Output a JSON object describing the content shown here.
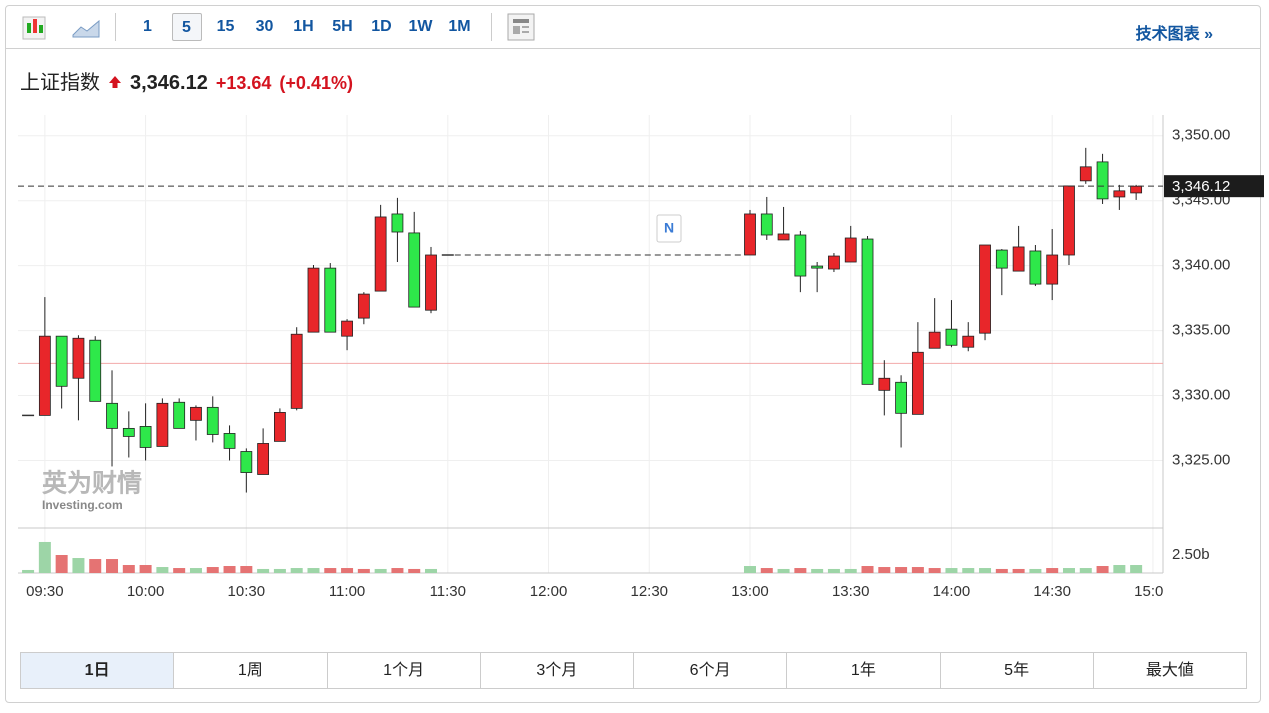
{
  "toolbar": {
    "intervals": [
      "1",
      "5",
      "15",
      "30",
      "1H",
      "5H",
      "1D",
      "1W",
      "1M"
    ],
    "active_interval_index": 1,
    "tech_chart": "技术图表 »"
  },
  "header": {
    "name": "上证指数",
    "change": "+13.64",
    "change_pct": "(+0.41%)"
  },
  "ranges": {
    "items": [
      "1日",
      "1周",
      "1个月",
      "3个月",
      "6个月",
      "1年",
      "5年",
      "最大値"
    ],
    "active_index": 0
  },
  "chart_data": {
    "type": "candlestick",
    "x": [
      "09:25",
      "09:30",
      "09:35",
      "09:40",
      "09:45",
      "09:50",
      "09:55",
      "10:00",
      "10:05",
      "10:10",
      "10:15",
      "10:20",
      "10:25",
      "10:30",
      "10:35",
      "10:40",
      "10:45",
      "10:50",
      "10:55",
      "11:00",
      "11:05",
      "11:10",
      "11:15",
      "11:20",
      "11:25",
      "11:30",
      "13:00",
      "13:05",
      "13:10",
      "13:15",
      "13:20",
      "13:25",
      "13:30",
      "13:35",
      "13:40",
      "13:45",
      "13:50",
      "13:55",
      "14:00",
      "14:05",
      "14:10",
      "14:15",
      "14:20",
      "14:25",
      "14:30",
      "14:35",
      "14:40",
      "14:45",
      "14:50",
      "14:55"
    ],
    "open": [
      3328.47,
      3328.47,
      3334.57,
      3331.33,
      3334.26,
      3329.4,
      3327.47,
      3327.62,
      3326.08,
      3329.48,
      3328.09,
      3329.09,
      3327.08,
      3325.69,
      3323.92,
      3326.47,
      3329.01,
      3334.88,
      3339.81,
      3334.57,
      3335.96,
      3338.04,
      3343.98,
      3342.52,
      3336.57,
      3340.82,
      3340.82,
      3343.98,
      3341.98,
      3342.36,
      3339.97,
      3339.74,
      3340.28,
      3342.05,
      3330.4,
      3331.02,
      3328.55,
      3333.64,
      3335.11,
      3333.72,
      3334.8,
      3341.2,
      3339.58,
      3341.13,
      3338.58,
      3340.82,
      3346.53,
      3347.99,
      3345.29,
      3345.6
    ],
    "high": [
      3328.47,
      3337.58,
      3334.57,
      3334.64,
      3334.57,
      3331.94,
      3328.78,
      3329.4,
      3329.78,
      3329.78,
      3329.24,
      3329.94,
      3327.7,
      3325.93,
      3327.47,
      3329.01,
      3335.26,
      3340.05,
      3340.2,
      3335.88,
      3337.96,
      3344.68,
      3345.22,
      3344.14,
      3341.44,
      3340.82,
      3344.29,
      3345.29,
      3344.52,
      3342.67,
      3340.28,
      3340.97,
      3343.06,
      3342.28,
      3332.72,
      3331.56,
      3335.65,
      3337.5,
      3337.35,
      3335.65,
      3341.59,
      3341.28,
      3343.06,
      3341.59,
      3342.82,
      3346.14,
      3349.07,
      3348.61,
      3346.22,
      3346.22
    ],
    "low": [
      3328.47,
      3328.47,
      3329.0,
      3328.09,
      3329.55,
      3324.54,
      3325.23,
      3325.0,
      3326.08,
      3327.47,
      3326.54,
      3326.39,
      3325.0,
      3322.53,
      3323.92,
      3326.47,
      3328.86,
      3334.88,
      3334.88,
      3333.49,
      3335.49,
      3338.04,
      3340.28,
      3336.81,
      3336.34,
      3340.82,
      3340.82,
      3341.98,
      3341.98,
      3337.96,
      3337.96,
      3339.51,
      3340.28,
      3330.86,
      3328.47,
      3326.0,
      3328.55,
      3333.64,
      3333.72,
      3333.41,
      3334.26,
      3337.73,
      3339.58,
      3338.43,
      3337.35,
      3340.05,
      3346.3,
      3344.75,
      3344.29,
      3345.06
    ],
    "close": [
      3328.47,
      3334.57,
      3330.71,
      3334.41,
      3329.55,
      3327.47,
      3326.85,
      3326.0,
      3329.4,
      3327.47,
      3329.09,
      3327.0,
      3325.93,
      3324.07,
      3326.31,
      3328.7,
      3334.72,
      3339.81,
      3334.88,
      3335.73,
      3337.81,
      3343.75,
      3342.59,
      3336.81,
      3340.82,
      3340.82,
      3343.98,
      3342.36,
      3342.44,
      3339.2,
      3339.81,
      3340.74,
      3342.13,
      3330.86,
      3331.33,
      3328.63,
      3333.33,
      3334.88,
      3333.87,
      3334.57,
      3341.59,
      3339.81,
      3341.44,
      3338.58,
      3340.82,
      3346.14,
      3347.61,
      3345.14,
      3345.76,
      3346.12
    ],
    "up_color": "#e8262a",
    "down_color": "#2ee84a",
    "flat_color": "#333333",
    "xlim": [
      "09:22",
      "15:03"
    ],
    "xticks": [
      "09:30",
      "10:00",
      "10:30",
      "11:00",
      "11:30",
      "12:00",
      "12:30",
      "13:00",
      "13:30",
      "14:00",
      "14:30",
      "15:00"
    ],
    "ylim": [
      3319.8,
      3351.6
    ],
    "yticks": [
      {
        "value": 3325,
        "label": "3,325.00"
      },
      {
        "value": 3330,
        "label": "3,330.00"
      },
      {
        "value": 3335,
        "label": "3,335.00"
      },
      {
        "value": 3340,
        "label": "3,340.00"
      },
      {
        "value": 3345,
        "label": "3,345.00"
      },
      {
        "value": 3350,
        "label": "3,350.00"
      }
    ],
    "grid": true,
    "last_price": {
      "value": 3346.12,
      "label": "3,346.12"
    },
    "prev_close": 3332.48,
    "event_marker": "N",
    "watermark": {
      "brand": "英为财情",
      "site": "Investing.com"
    },
    "volume": {
      "values": [
        0.42,
        4.31,
        2.5,
        2.08,
        1.94,
        1.94,
        1.11,
        1.11,
        0.83,
        0.69,
        0.69,
        0.83,
        0.97,
        0.97,
        0.56,
        0.56,
        0.69,
        0.69,
        0.69,
        0.69,
        0.56,
        0.56,
        0.69,
        0.56,
        0.56,
        null,
        0.97,
        0.69,
        0.56,
        0.69,
        0.56,
        0.56,
        0.56,
        0.97,
        0.83,
        0.83,
        0.83,
        0.69,
        0.69,
        0.69,
        0.69,
        0.56,
        0.56,
        0.56,
        0.69,
        0.69,
        0.69,
        0.97,
        1.11,
        1.11
      ],
      "colors": [
        "#9dd5a7",
        "#9dd5a7",
        "#e57373",
        "#9dd5a7",
        "#e57373",
        "#e57373",
        "#e57373",
        "#e57373",
        "#9dd5a7",
        "#e57373",
        "#9dd5a7",
        "#e57373",
        "#e57373",
        "#e57373",
        "#9dd5a7",
        "#9dd5a7",
        "#9dd5a7",
        "#9dd5a7",
        "#e57373",
        "#e57373",
        "#e57373",
        "#9dd5a7",
        "#e57373",
        "#e57373",
        "#9dd5a7",
        null,
        "#9dd5a7",
        "#e57373",
        "#9dd5a7",
        "#e57373",
        "#9dd5a7",
        "#9dd5a7",
        "#9dd5a7",
        "#e57373",
        "#e57373",
        "#e57373",
        "#e57373",
        "#e57373",
        "#9dd5a7",
        "#9dd5a7",
        "#9dd5a7",
        "#e57373",
        "#e57373",
        "#9dd5a7",
        "#e57373",
        "#9dd5a7",
        "#9dd5a7",
        "#e57373",
        "#9dd5a7",
        "#9dd5a7"
      ],
      "ylim": [
        0,
        6.25
      ],
      "yticks": [
        {
          "value": 2.5,
          "label": "2.50b"
        }
      ]
    }
  }
}
